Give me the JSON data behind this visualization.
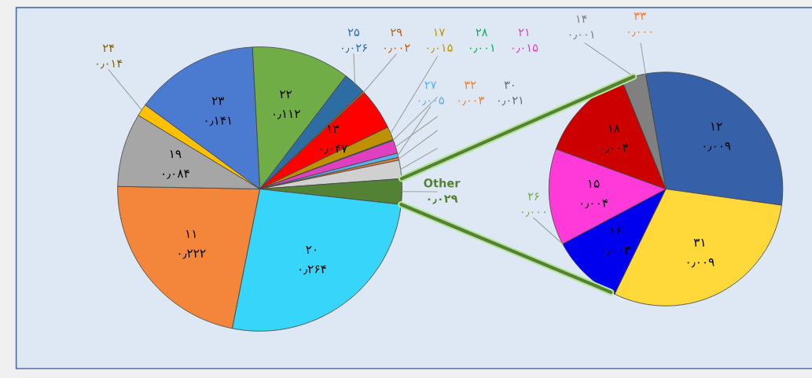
{
  "chart_data": [
    {
      "type": "pie",
      "categories": [
        "۲۲",
        "۲۵",
        "۲۹",
        "۱۳",
        "۱۷",
        "۲۸",
        "۲۱",
        "۲۷",
        "۳۲",
        "۳۰",
        "Other",
        "۲۰",
        "۱۱",
        "۱۹",
        "۲۴",
        "۲۳"
      ],
      "values": [
        0.112,
        0.026,
        0.002,
        0.047,
        0.015,
        0.001,
        0.015,
        0.005,
        0.003,
        0.021,
        0.029,
        0.264,
        0.222,
        0.084,
        0.014,
        0.141
      ],
      "colors": [
        "#70ad47",
        "#2e6ca4",
        "#c55a11",
        "#ff0000",
        "#bf9000",
        "#00b050",
        "#e040c0",
        "#5bb0e8",
        "#ed7d31",
        "#d0d0d0",
        "#548235",
        "#38d5fb",
        "#f4863b",
        "#a6a6a6",
        "#ffc000",
        "#4a7bd0"
      ],
      "value_labels": [
        "۰٫۱۱۲",
        "۰٫۰۲۶",
        "۰٫۰۰۲",
        "۰٫۰۴۷",
        "۰٫۰۱۵",
        "۰٫۰۰۱",
        "۰٫۰۱۵",
        "۰٫۰۰۵",
        "۰٫۰۰۳",
        "۰٫۰۲۱",
        "۰٫۰۲۹",
        "۰٫۲۶۴",
        "۰٫۲۲۲",
        "۰٫۰۸۴",
        "۰٫۰۱۴",
        "۰٫۱۴۱"
      ]
    },
    {
      "type": "pie",
      "categories": [
        "۳۳",
        "۱۲",
        "۳۱",
        "۱۶",
        "۲۶",
        "۱۵",
        "۱۸",
        "۱۴"
      ],
      "values": [
        0.0,
        0.009,
        0.009,
        0.003,
        0.0,
        0.004,
        0.004,
        0.001
      ],
      "colors": [
        "#ed7d31",
        "#3660a8",
        "#ffd83a",
        "#0000ee",
        "#70ad47",
        "#ff3ad8",
        "#cc0000",
        "#808080"
      ],
      "value_labels": [
        "۰٫۰۰۰",
        "۰٫۰۰۹",
        "۰٫۰۰۹",
        "۰٫۰۰۳",
        "۰٫۰۰۰",
        "۰٫۰۰۴",
        "۰٫۰۰۴",
        "۰٫۰۰۱"
      ]
    }
  ]
}
